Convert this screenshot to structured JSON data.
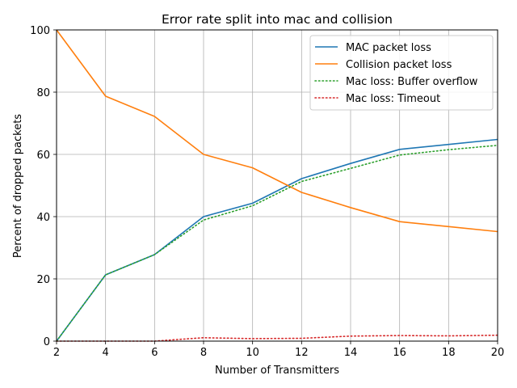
{
  "chart_data": {
    "type": "line",
    "title": "Error rate split into mac and collision",
    "xlabel": "Number of Transmitters",
    "ylabel": "Percent of dropped packets",
    "xlim": [
      2,
      20
    ],
    "ylim": [
      0,
      100
    ],
    "xticks": [
      2,
      4,
      6,
      8,
      10,
      12,
      14,
      16,
      18,
      20
    ],
    "yticks": [
      0,
      20,
      40,
      60,
      80,
      100
    ],
    "grid": true,
    "legend_position": "top-right",
    "x": [
      2,
      4,
      6,
      8,
      10,
      12,
      14,
      16,
      18,
      20
    ],
    "series": [
      {
        "name": "MAC packet loss",
        "color": "#1f77b4",
        "style": "solid",
        "values": [
          0,
          21.3,
          27.8,
          40.0,
          44.3,
          52.2,
          57.1,
          61.6,
          63.2,
          64.8
        ]
      },
      {
        "name": "Collision packet loss",
        "color": "#ff7f0e",
        "style": "solid",
        "values": [
          100,
          78.7,
          72.2,
          60.0,
          55.7,
          47.8,
          42.9,
          38.4,
          36.8,
          35.2
        ]
      },
      {
        "name": "Mac loss: Buffer overflow",
        "color": "#2ca02c",
        "style": "dotted",
        "values": [
          0,
          21.3,
          27.8,
          38.9,
          43.5,
          51.3,
          55.5,
          59.8,
          61.5,
          62.9
        ]
      },
      {
        "name": "Mac loss: Timeout",
        "color": "#d62728",
        "style": "dotted",
        "values": [
          0,
          0,
          0,
          1.1,
          0.8,
          0.9,
          1.6,
          1.8,
          1.7,
          1.9
        ]
      }
    ]
  }
}
